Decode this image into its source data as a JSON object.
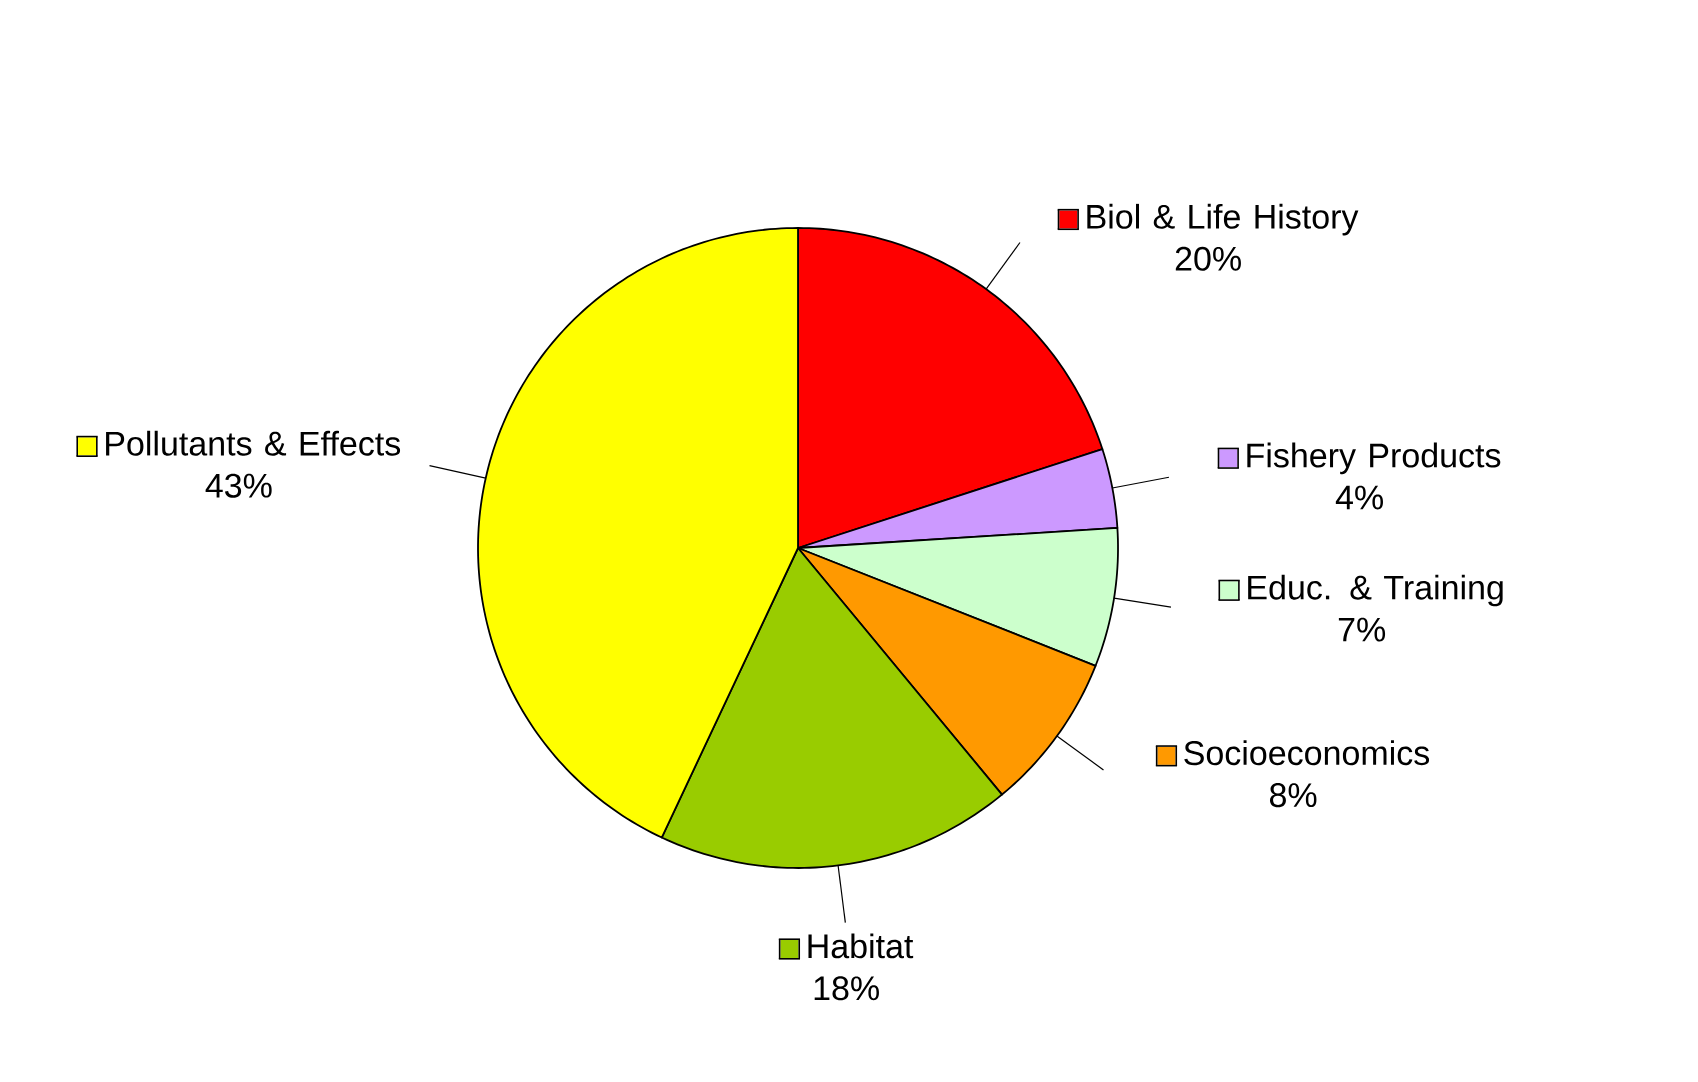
{
  "chart_data": {
    "type": "pie",
    "categories": [
      "Biol & Life History",
      "Fishery Products",
      "Educ. & Training",
      "Socioeconomics",
      "Habitat",
      "Pollutants & Effects"
    ],
    "values": [
      20,
      4,
      7,
      8,
      18,
      43
    ],
    "colors": [
      "#ff0000",
      "#cc99ff",
      "#ccffcc",
      "#ff9900",
      "#99cc00",
      "#ffff00"
    ],
    "value_labels": [
      "20%",
      "4%",
      "7%",
      "8%",
      "18%",
      "43%"
    ],
    "legend": "right"
  }
}
